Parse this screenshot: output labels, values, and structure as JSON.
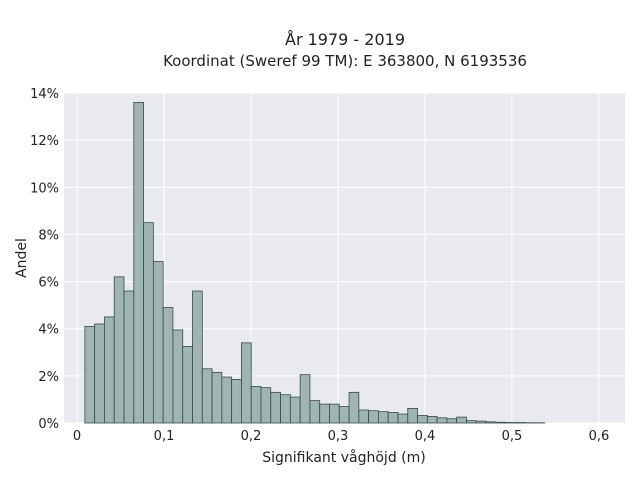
{
  "chart_data": {
    "type": "bar",
    "title_line1": "År 1979 - 2019",
    "title_line2": "Koordinat (Sweref 99 TM): E 363800, N 6193536",
    "xlabel": "Signifikant våghöjd (m)",
    "ylabel": "Andel",
    "xlim": [
      -0.015,
      0.63
    ],
    "ylim": [
      0,
      14
    ],
    "x_ticks": [
      {
        "value": 0.0,
        "label": "0"
      },
      {
        "value": 0.1,
        "label": "0,1"
      },
      {
        "value": 0.2,
        "label": "0,2"
      },
      {
        "value": 0.3,
        "label": "0,3"
      },
      {
        "value": 0.4,
        "label": "0,4"
      },
      {
        "value": 0.5,
        "label": "0,5"
      },
      {
        "value": 0.6,
        "label": "0,6"
      }
    ],
    "y_ticks": [
      {
        "value": 0,
        "label": "0%"
      },
      {
        "value": 2,
        "label": "2%"
      },
      {
        "value": 4,
        "label": "4%"
      },
      {
        "value": 6,
        "label": "6%"
      },
      {
        "value": 8,
        "label": "8%"
      },
      {
        "value": 10,
        "label": "10%"
      },
      {
        "value": 12,
        "label": "12%"
      },
      {
        "value": 14,
        "label": "14%"
      }
    ],
    "bin_start": 0.009,
    "bin_width": 0.01125,
    "values": [
      4.1,
      4.2,
      4.5,
      6.2,
      5.6,
      13.6,
      8.5,
      6.85,
      4.9,
      3.95,
      3.25,
      5.6,
      2.3,
      2.15,
      1.95,
      1.85,
      3.4,
      1.55,
      1.5,
      1.3,
      1.2,
      1.1,
      2.05,
      0.95,
      0.8,
      0.8,
      0.7,
      1.3,
      0.55,
      0.52,
      0.48,
      0.45,
      0.38,
      0.62,
      0.32,
      0.28,
      0.22,
      0.18,
      0.25,
      0.1,
      0.08,
      0.05,
      0.03,
      0.02,
      0.02,
      0.01,
      0.01
    ],
    "grid": true,
    "bar_color": "#9eb5b3",
    "bar_edge_color": "#3a4a48",
    "plot_background": "#e9e9f0",
    "grid_color": "#ffffff"
  }
}
